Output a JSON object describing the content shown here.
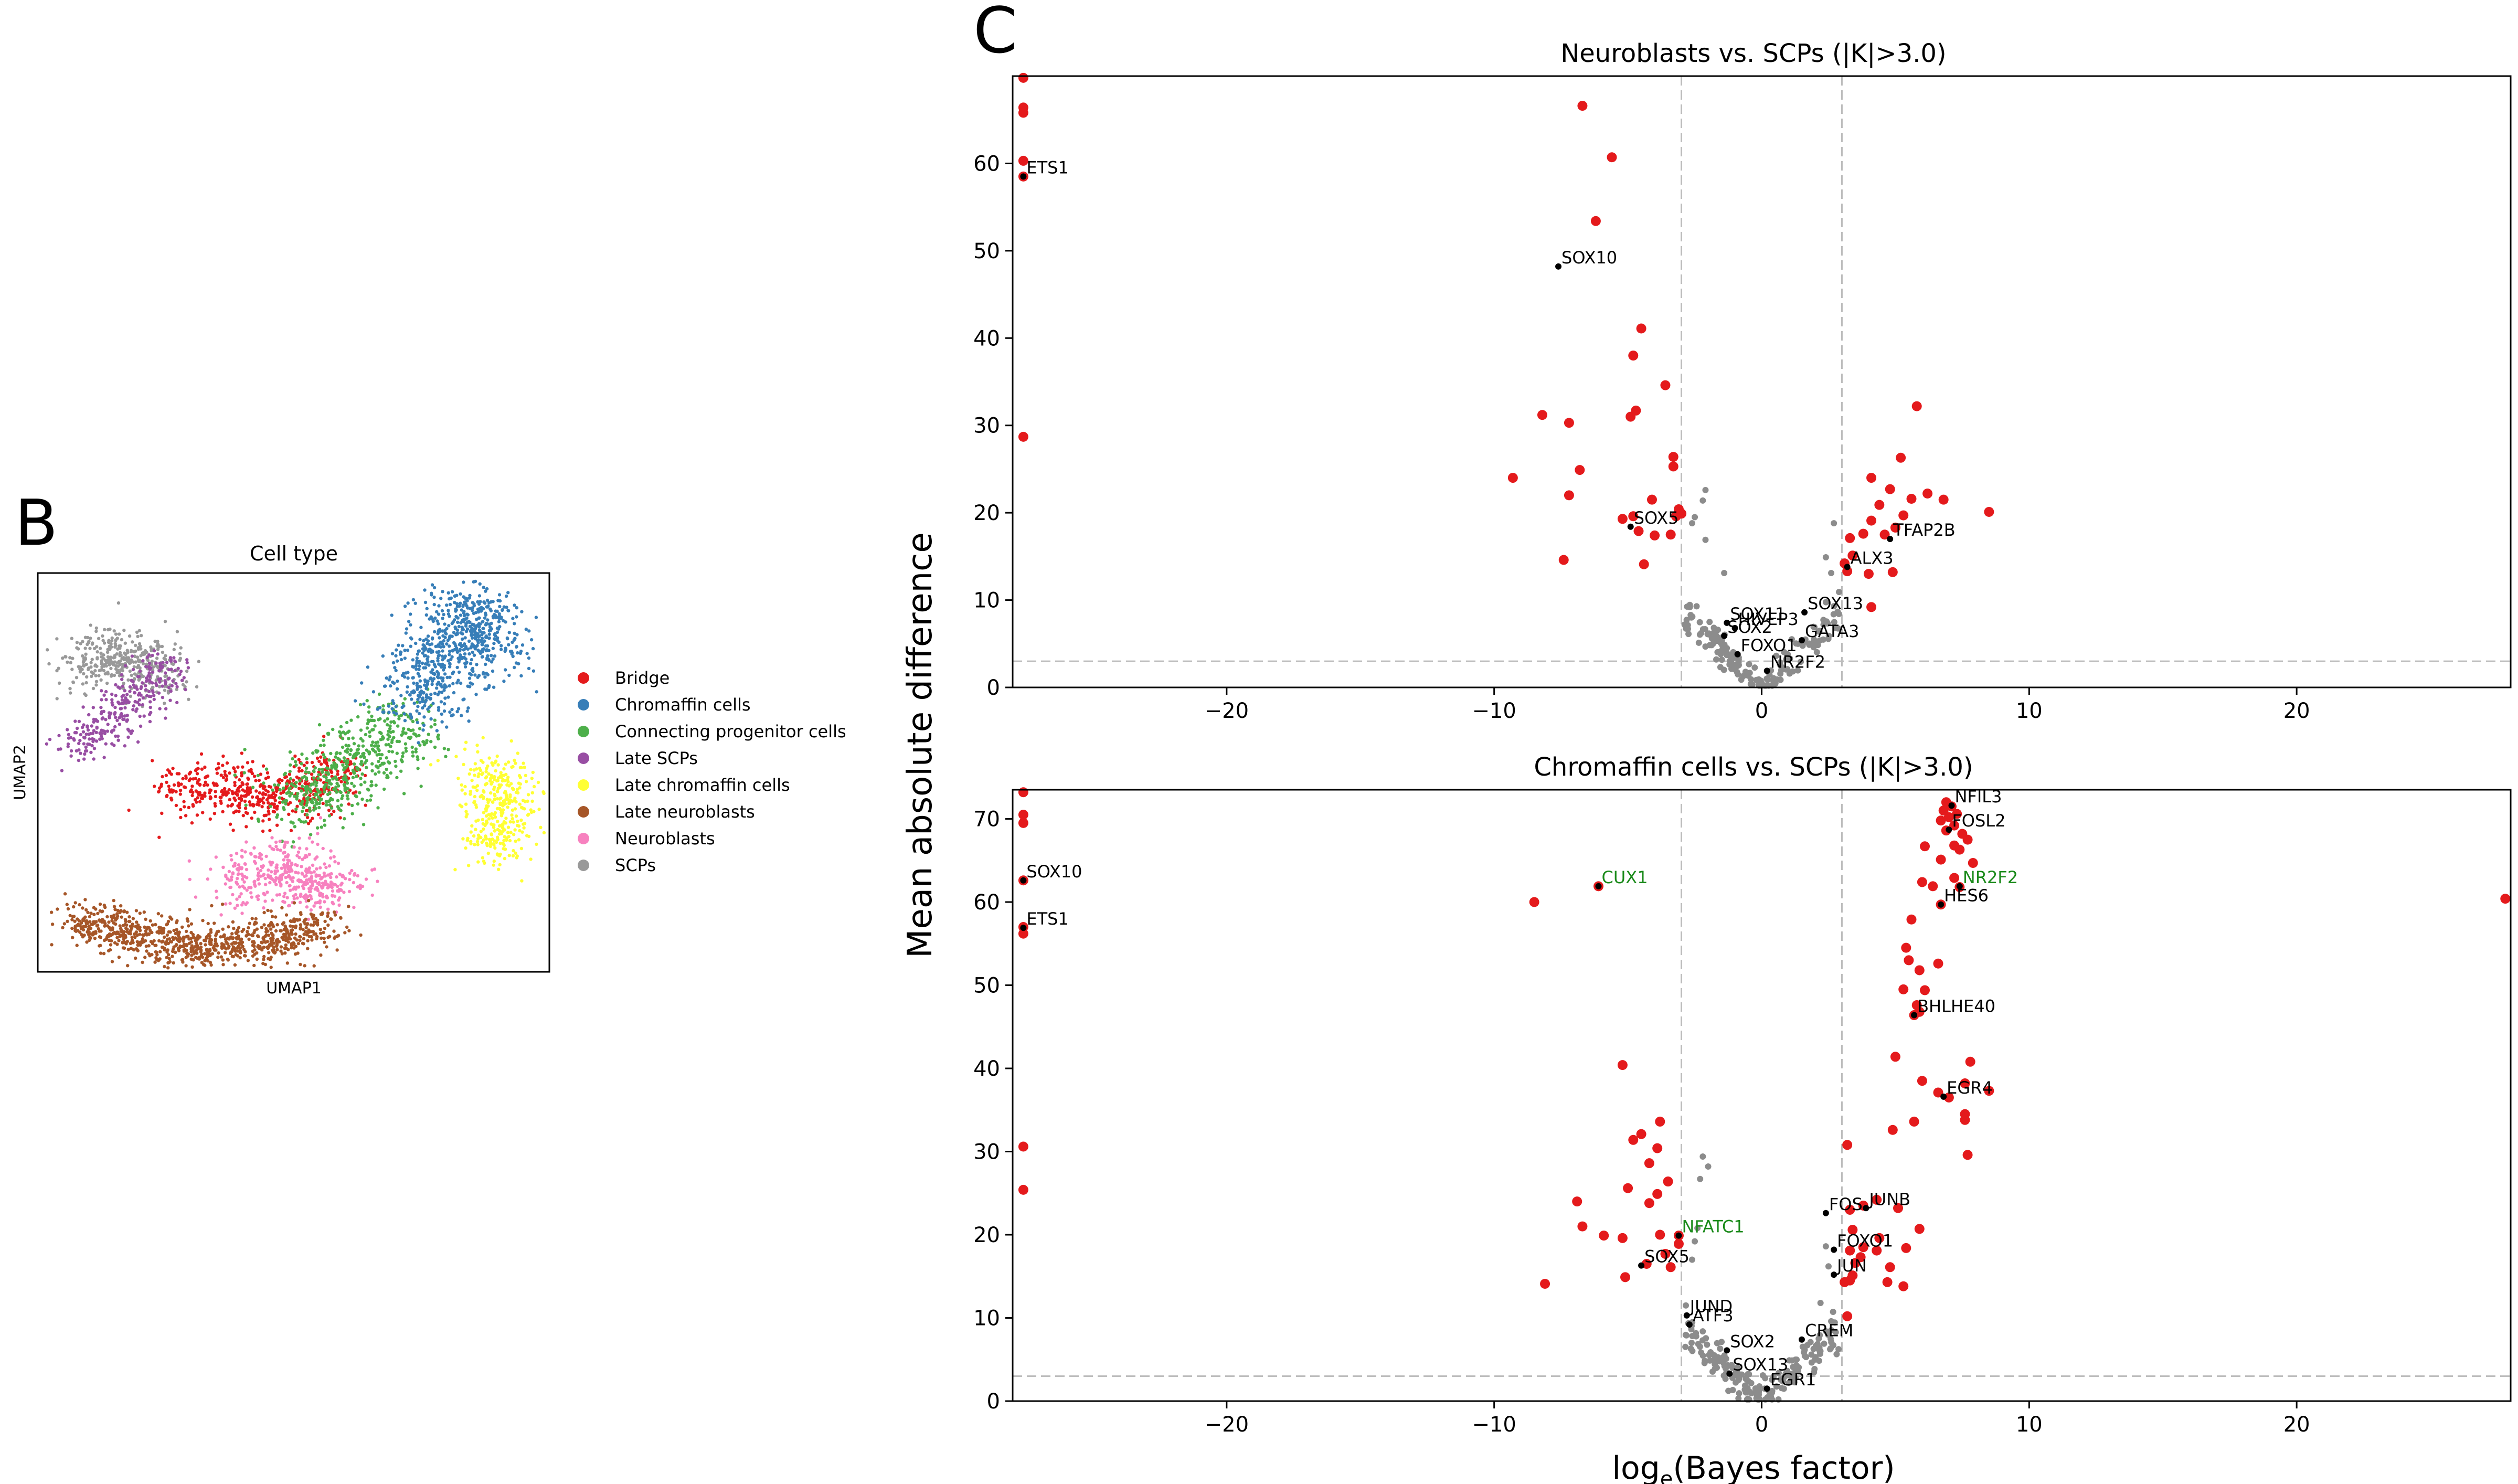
{
  "panel_labels": {
    "b": "B",
    "c": "C"
  },
  "colors": {
    "sig": "#e41a1c",
    "nonsig": "#8c8c8c",
    "highlight": "#000000",
    "green_label": "#1a8a1a",
    "threshold": "#bdbdbd"
  },
  "chart_data": [
    {
      "type": "scatter",
      "title": "Cell type",
      "xlabel": "UMAP1",
      "ylabel": "UMAP2",
      "legend_position": "right",
      "categories": [
        {
          "name": "Bridge",
          "color": "#e41a1c"
        },
        {
          "name": "Chromaffin cells",
          "color": "#377eb8"
        },
        {
          "name": "Connecting progenitor cells",
          "color": "#4daf4a"
        },
        {
          "name": "Late SCPs",
          "color": "#984ea3"
        },
        {
          "name": "Late chromaffin cells",
          "color": "#ffff33"
        },
        {
          "name": "Late neuroblasts",
          "color": "#a65628"
        },
        {
          "name": "Neuroblasts",
          "color": "#f781bf"
        },
        {
          "name": "SCPs",
          "color": "#999999"
        }
      ],
      "clusters": [
        {
          "cat": 7,
          "n": 380,
          "pts": [
            [
              0.08,
              0.77
            ],
            [
              0.14,
              0.8
            ],
            [
              0.2,
              0.78
            ],
            [
              0.25,
              0.73
            ]
          ],
          "spread": 0.035
        },
        {
          "cat": 3,
          "n": 300,
          "pts": [
            [
              0.07,
              0.55
            ],
            [
              0.13,
              0.62
            ],
            [
              0.2,
              0.7
            ],
            [
              0.24,
              0.77
            ]
          ],
          "spread": 0.028
        },
        {
          "cat": 0,
          "n": 520,
          "pts": [
            [
              0.26,
              0.47
            ],
            [
              0.36,
              0.45
            ],
            [
              0.44,
              0.43
            ],
            [
              0.52,
              0.46
            ],
            [
              0.6,
              0.5
            ]
          ],
          "spread": 0.035
        },
        {
          "cat": 2,
          "n": 520,
          "pts": [
            [
              0.5,
              0.42
            ],
            [
              0.58,
              0.48
            ],
            [
              0.66,
              0.56
            ],
            [
              0.72,
              0.64
            ]
          ],
          "spread": 0.045
        },
        {
          "cat": 1,
          "n": 750,
          "pts": [
            [
              0.73,
              0.66
            ],
            [
              0.78,
              0.76
            ],
            [
              0.82,
              0.86
            ],
            [
              0.86,
              0.92
            ],
            [
              0.9,
              0.77
            ]
          ],
          "spread": 0.045
        },
        {
          "cat": 4,
          "n": 360,
          "pts": [
            [
              0.87,
              0.52
            ],
            [
              0.9,
              0.42
            ],
            [
              0.89,
              0.3
            ],
            [
              0.92,
              0.5
            ]
          ],
          "spread": 0.035
        },
        {
          "cat": 6,
          "n": 420,
          "pts": [
            [
              0.37,
              0.2
            ],
            [
              0.44,
              0.26
            ],
            [
              0.52,
              0.22
            ],
            [
              0.6,
              0.21
            ],
            [
              0.47,
              0.33
            ]
          ],
          "spread": 0.033
        },
        {
          "cat": 5,
          "n": 900,
          "pts": [
            [
              0.07,
              0.13
            ],
            [
              0.17,
              0.1
            ],
            [
              0.27,
              0.07
            ],
            [
              0.37,
              0.06
            ],
            [
              0.47,
              0.08
            ],
            [
              0.57,
              0.12
            ]
          ],
          "spread": 0.03
        }
      ]
    },
    {
      "type": "scatter",
      "title": "Neuroblasts vs. SCPs (|K|>3.0)",
      "xlabel": "",
      "ylabel": "",
      "xlim": [
        -28,
        28
      ],
      "ylim": [
        0,
        70
      ],
      "xticks": [
        -20,
        -10,
        0,
        10,
        20
      ],
      "yticks": [
        0,
        10,
        20,
        30,
        40,
        50,
        60
      ],
      "threshold_x": [
        -3,
        3
      ],
      "threshold_y": 3,
      "significant": [
        [
          -27.6,
          69.8
        ],
        [
          -27.6,
          66.4
        ],
        [
          -27.6,
          65.8
        ],
        [
          -27.6,
          60.3
        ],
        [
          -27.6,
          58.5
        ],
        [
          -27.6,
          28.7
        ],
        [
          -6.7,
          66.6
        ],
        [
          -5.6,
          60.7
        ],
        [
          -6.2,
          53.4
        ],
        [
          -4.5,
          41.1
        ],
        [
          -4.8,
          38.0
        ],
        [
          -3.6,
          34.6
        ],
        [
          -7.2,
          30.3
        ],
        [
          -4.9,
          31.0
        ],
        [
          -4.7,
          31.7
        ],
        [
          -3.3,
          26.4
        ],
        [
          -3.3,
          25.3
        ],
        [
          -6.8,
          24.9
        ],
        [
          -9.3,
          24.0
        ],
        [
          -7.2,
          22.0
        ],
        [
          -8.2,
          31.2
        ],
        [
          -4.1,
          21.5
        ],
        [
          -3.1,
          20.4
        ],
        [
          -3.2,
          19.6
        ],
        [
          -3.0,
          19.9
        ],
        [
          -4.8,
          19.6
        ],
        [
          -4.6,
          17.9
        ],
        [
          -4.0,
          17.4
        ],
        [
          -3.4,
          17.5
        ],
        [
          -4.4,
          14.1
        ],
        [
          -7.4,
          14.6
        ],
        [
          -5.2,
          19.3
        ],
        [
          5.8,
          32.2
        ],
        [
          5.2,
          26.3
        ],
        [
          4.1,
          24.0
        ],
        [
          6.2,
          22.2
        ],
        [
          4.8,
          22.7
        ],
        [
          5.6,
          21.6
        ],
        [
          6.8,
          21.5
        ],
        [
          8.5,
          20.1
        ],
        [
          4.4,
          20.9
        ],
        [
          5.3,
          19.7
        ],
        [
          4.1,
          19.1
        ],
        [
          3.8,
          17.6
        ],
        [
          4.6,
          17.5
        ],
        [
          5.0,
          18.3
        ],
        [
          3.3,
          17.1
        ],
        [
          3.4,
          15.1
        ],
        [
          3.1,
          14.2
        ],
        [
          3.2,
          13.3
        ],
        [
          4.0,
          13.0
        ],
        [
          4.9,
          13.2
        ],
        [
          4.1,
          9.2
        ]
      ],
      "nonsig_n": 170,
      "nonsig_extra": [
        [
          -2.5,
          19.5
        ],
        [
          -2.6,
          18.8
        ],
        [
          -2.1,
          16.9
        ],
        [
          -2.2,
          21.4
        ],
        [
          -2.1,
          22.6
        ],
        [
          -1.4,
          13.1
        ],
        [
          2.4,
          14.9
        ],
        [
          2.7,
          18.8
        ],
        [
          2.6,
          13.1
        ]
      ],
      "labels": [
        {
          "text": "ETS1",
          "x": -27.6,
          "y": 58.5,
          "color": "black"
        },
        {
          "text": "SOX10",
          "x": -7.6,
          "y": 48.2,
          "color": "black"
        },
        {
          "text": "SOX5",
          "x": -4.9,
          "y": 18.4,
          "color": "black"
        },
        {
          "text": "TFAP2B",
          "x": 4.8,
          "y": 17.0,
          "color": "black"
        },
        {
          "text": "ALX3",
          "x": 3.2,
          "y": 13.8,
          "color": "black"
        },
        {
          "text": "SOX13",
          "x": 1.6,
          "y": 8.6,
          "color": "black"
        },
        {
          "text": "SOX11",
          "x": -1.3,
          "y": 7.4,
          "color": "black"
        },
        {
          "text": "HIVEP3",
          "x": -1.0,
          "y": 6.8,
          "color": "black"
        },
        {
          "text": "SOX2",
          "x": -1.4,
          "y": 5.9,
          "color": "black"
        },
        {
          "text": "GATA3",
          "x": 1.5,
          "y": 5.4,
          "color": "black"
        },
        {
          "text": "FOXO1",
          "x": -0.9,
          "y": 3.8,
          "color": "black"
        },
        {
          "text": "NR2F2",
          "x": 0.2,
          "y": 1.9,
          "color": "black"
        }
      ]
    },
    {
      "type": "scatter",
      "title": "Chromaffin cells vs. SCPs (|K|>3.0)",
      "xlabel": "log_e(Bayes factor)",
      "ylabel": "",
      "xlim": [
        -28,
        28
      ],
      "ylim": [
        0,
        73.5
      ],
      "xticks": [
        -20,
        -10,
        0,
        10,
        20
      ],
      "yticks": [
        0,
        10,
        20,
        30,
        40,
        50,
        60,
        70
      ],
      "threshold_x": [
        -3,
        3
      ],
      "threshold_y": 3,
      "significant": [
        [
          -27.6,
          73.2
        ],
        [
          -27.6,
          70.5
        ],
        [
          -27.6,
          69.5
        ],
        [
          -27.6,
          62.6
        ],
        [
          -27.6,
          57.0
        ],
        [
          -27.6,
          56.2
        ],
        [
          -27.6,
          30.6
        ],
        [
          -27.6,
          25.4
        ],
        [
          27.8,
          60.4
        ],
        [
          -8.5,
          60.0
        ],
        [
          -6.1,
          61.9
        ],
        [
          6.9,
          72.0
        ],
        [
          7.1,
          71.5
        ],
        [
          6.8,
          71.0
        ],
        [
          7.3,
          70.6
        ],
        [
          7.0,
          70.2
        ],
        [
          6.7,
          69.8
        ],
        [
          7.2,
          69.2
        ],
        [
          7.5,
          68.2
        ],
        [
          6.9,
          68.6
        ],
        [
          7.7,
          67.5
        ],
        [
          7.2,
          66.8
        ],
        [
          7.4,
          66.3
        ],
        [
          6.1,
          66.7
        ],
        [
          6.7,
          65.1
        ],
        [
          7.9,
          64.7
        ],
        [
          6.0,
          62.4
        ],
        [
          7.2,
          62.9
        ],
        [
          6.4,
          61.9
        ],
        [
          7.4,
          61.8
        ],
        [
          6.7,
          59.7
        ],
        [
          5.6,
          57.9
        ],
        [
          5.4,
          54.5
        ],
        [
          5.5,
          53.0
        ],
        [
          6.6,
          52.6
        ],
        [
          5.9,
          51.8
        ],
        [
          5.3,
          49.5
        ],
        [
          6.1,
          49.4
        ],
        [
          5.8,
          47.6
        ],
        [
          5.7,
          46.4
        ],
        [
          5.9,
          46.8
        ],
        [
          7.8,
          40.8
        ],
        [
          5.0,
          41.4
        ],
        [
          6.0,
          38.5
        ],
        [
          7.6,
          38.2
        ],
        [
          8.5,
          37.3
        ],
        [
          7.0,
          36.5
        ],
        [
          6.6,
          37.1
        ],
        [
          5.7,
          33.6
        ],
        [
          7.6,
          34.5
        ],
        [
          7.6,
          33.8
        ],
        [
          4.9,
          32.6
        ],
        [
          3.2,
          30.8
        ],
        [
          7.7,
          29.6
        ],
        [
          4.3,
          24.2
        ],
        [
          3.8,
          23.5
        ],
        [
          3.3,
          23.0
        ],
        [
          5.1,
          23.2
        ],
        [
          5.9,
          20.7
        ],
        [
          3.4,
          20.6
        ],
        [
          4.4,
          19.6
        ],
        [
          3.3,
          18.1
        ],
        [
          3.8,
          18.5
        ],
        [
          3.7,
          17.3
        ],
        [
          4.3,
          18.1
        ],
        [
          5.4,
          18.4
        ],
        [
          3.5,
          16.6
        ],
        [
          4.8,
          16.1
        ],
        [
          3.4,
          15.1
        ],
        [
          3.1,
          14.3
        ],
        [
          3.3,
          14.5
        ],
        [
          4.7,
          14.3
        ],
        [
          5.3,
          13.8
        ],
        [
          3.2,
          10.2
        ],
        [
          -5.2,
          40.4
        ],
        [
          -3.8,
          33.6
        ],
        [
          -4.5,
          32.1
        ],
        [
          -4.8,
          31.4
        ],
        [
          -3.9,
          30.4
        ],
        [
          -4.2,
          28.6
        ],
        [
          -3.5,
          26.4
        ],
        [
          -3.9,
          24.9
        ],
        [
          -5.0,
          25.6
        ],
        [
          -6.9,
          24.0
        ],
        [
          -4.2,
          23.8
        ],
        [
          -6.7,
          21.0
        ],
        [
          -5.9,
          19.9
        ],
        [
          -3.8,
          20.0
        ],
        [
          -5.2,
          19.6
        ],
        [
          -3.1,
          19.9
        ],
        [
          -3.4,
          16.1
        ],
        [
          -4.3,
          16.5
        ],
        [
          -5.1,
          14.9
        ],
        [
          -8.1,
          14.1
        ],
        [
          -3.1,
          18.9
        ],
        [
          -3.6,
          17.7
        ]
      ],
      "nonsig_n": 180,
      "nonsig_extra": [
        [
          -2.2,
          29.4
        ],
        [
          -2.0,
          28.2
        ],
        [
          -2.3,
          26.7
        ],
        [
          -2.4,
          20.8
        ],
        [
          -2.5,
          19.2
        ],
        [
          -2.6,
          17.0
        ],
        [
          2.4,
          18.6
        ],
        [
          2.5,
          16.2
        ],
        [
          2.2,
          11.8
        ],
        [
          2.6,
          9.6
        ]
      ],
      "labels": [
        {
          "text": "SOX10",
          "x": -27.6,
          "y": 62.6,
          "color": "black"
        },
        {
          "text": "ETS1",
          "x": -27.6,
          "y": 56.9,
          "color": "black"
        },
        {
          "text": "CUX1",
          "x": -6.1,
          "y": 61.9,
          "color": "green"
        },
        {
          "text": "NFIL3",
          "x": 7.1,
          "y": 71.6,
          "color": "black"
        },
        {
          "text": "FOSL2",
          "x": 7.0,
          "y": 68.7,
          "color": "black"
        },
        {
          "text": "NR2F2",
          "x": 7.4,
          "y": 61.9,
          "color": "green"
        },
        {
          "text": "HES6",
          "x": 6.7,
          "y": 59.7,
          "color": "black"
        },
        {
          "text": "BHLHE40",
          "x": 5.7,
          "y": 46.4,
          "color": "black"
        },
        {
          "text": "EGR4",
          "x": 6.8,
          "y": 36.6,
          "color": "black"
        },
        {
          "text": "FOS",
          "x": 2.4,
          "y": 22.6,
          "color": "black"
        },
        {
          "text": "JUNB",
          "x": 3.9,
          "y": 23.2,
          "color": "black"
        },
        {
          "text": "NFATC1",
          "x": -3.1,
          "y": 19.9,
          "color": "green"
        },
        {
          "text": "FOXO1",
          "x": 2.7,
          "y": 18.2,
          "color": "black"
        },
        {
          "text": "SOX5",
          "x": -4.5,
          "y": 16.3,
          "color": "black"
        },
        {
          "text": "JUN",
          "x": 2.7,
          "y": 15.2,
          "color": "black"
        },
        {
          "text": "JUND",
          "x": -2.8,
          "y": 10.3,
          "color": "black"
        },
        {
          "text": "ATF3",
          "x": -2.7,
          "y": 9.2,
          "color": "black"
        },
        {
          "text": "CREM",
          "x": 1.5,
          "y": 7.4,
          "color": "black"
        },
        {
          "text": "SOX2",
          "x": -1.3,
          "y": 6.1,
          "color": "black"
        },
        {
          "text": "SOX13",
          "x": -1.2,
          "y": 3.3,
          "color": "black"
        },
        {
          "text": "EGR1",
          "x": 0.2,
          "y": 1.5,
          "color": "black"
        }
      ]
    }
  ],
  "shared_ylabel": "Mean absolute difference"
}
